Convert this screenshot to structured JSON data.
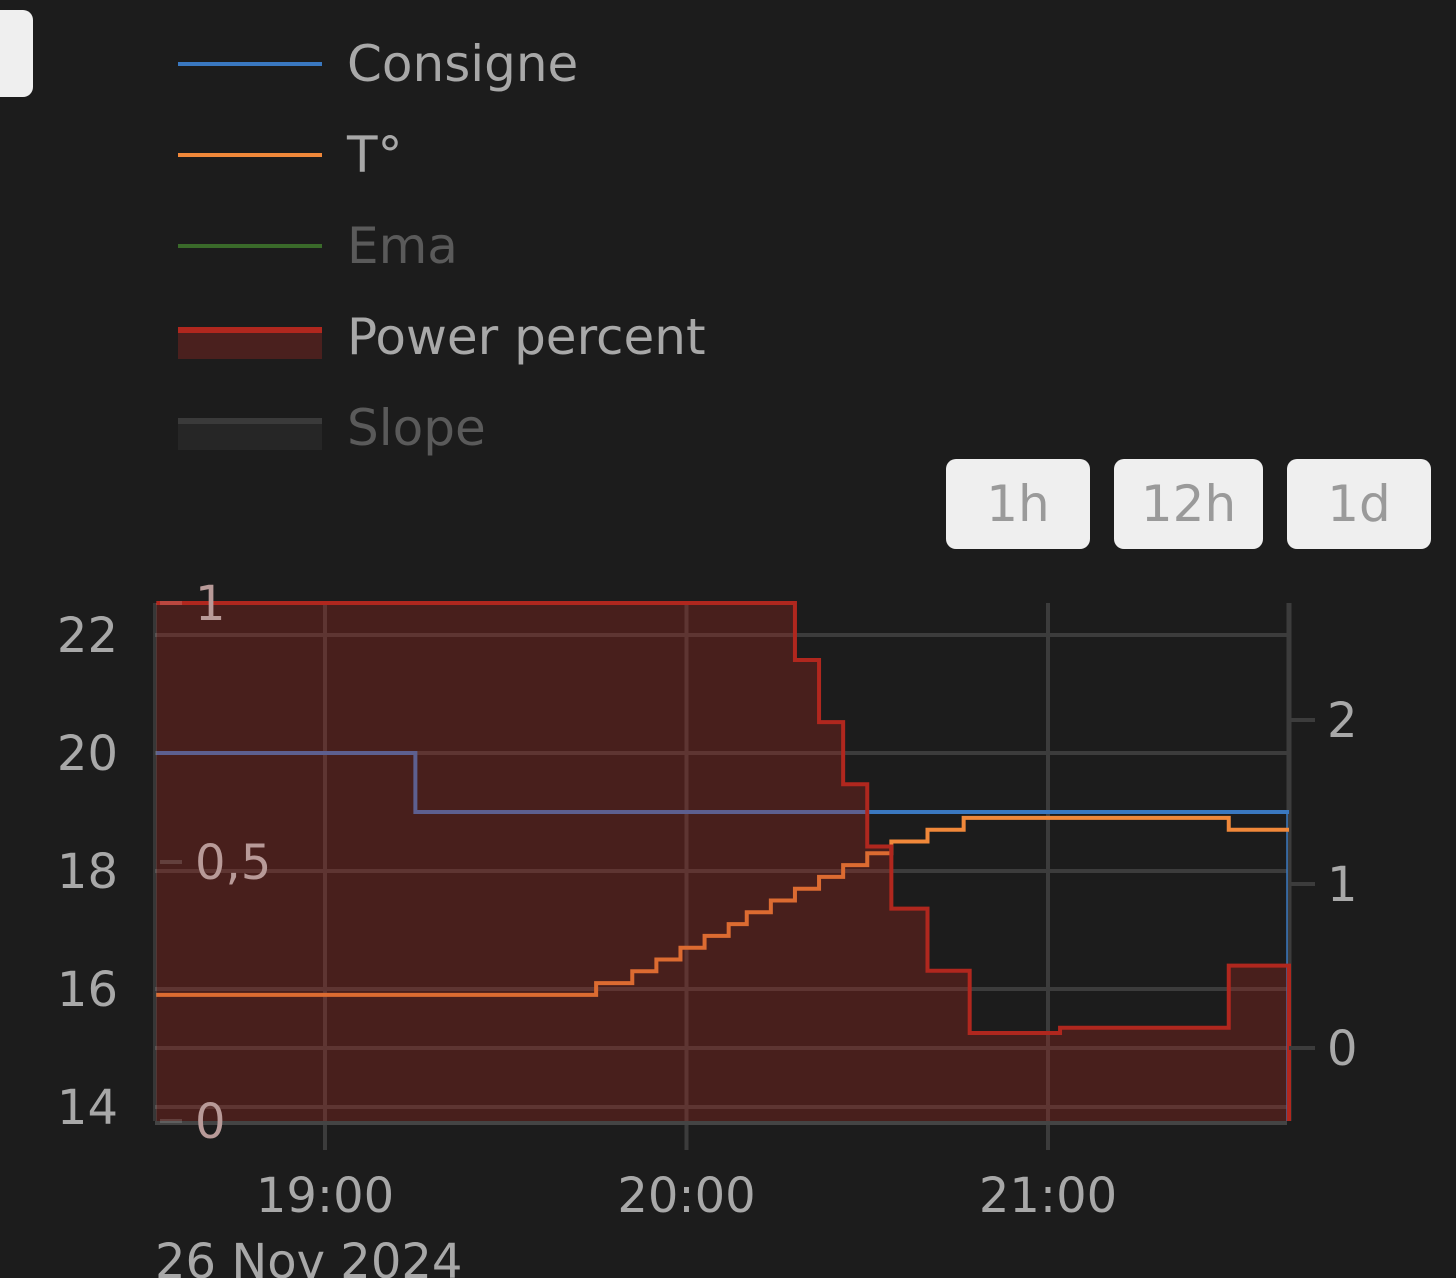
{
  "legend": [
    {
      "name": "Consigne",
      "color": "#3a78c0",
      "visible": true
    },
    {
      "name": "T°",
      "color": "#f0883a",
      "visible": true
    },
    {
      "name": "Ema",
      "color": "#3a6a2a",
      "visible": false
    },
    {
      "name": "Power percent",
      "color": "#b0271e",
      "fill": "#4a201e",
      "visible": true
    },
    {
      "name": "Slope",
      "color": "#3a3a3a",
      "fill": "#262626",
      "visible": false
    }
  ],
  "range_buttons": [
    "1h",
    "12h",
    "1d"
  ],
  "chart_data": {
    "type": "line",
    "line_shape": "step",
    "x_range": [
      "18:32",
      "21:40"
    ],
    "x_ticks": [
      "19:00",
      "20:00",
      "21:00"
    ],
    "x_date_label": "26 Nov 2024",
    "y_left": {
      "range": [
        13.8,
        22.5
      ],
      "ticks": [
        "22",
        "20",
        "18",
        "16",
        "14"
      ]
    },
    "y_power": {
      "range": [
        0,
        1
      ],
      "ticks": [
        "1",
        "0,5",
        "0"
      ]
    },
    "y_slope": {
      "range": [
        -0.45,
        2.7
      ],
      "ticks": [
        "2",
        "1",
        "0"
      ]
    },
    "grid": true,
    "legend_position": "top-left",
    "series": [
      {
        "name": "Consigne",
        "axis": "left",
        "color": "#3a78c0",
        "x": [
          "18:32",
          "19:15",
          "21:40"
        ],
        "y": [
          20,
          19,
          19
        ]
      },
      {
        "name": "T°",
        "axis": "left",
        "color": "#f0883a",
        "x": [
          "18:32",
          "19:45",
          "19:51",
          "19:55",
          "19:59",
          "20:03",
          "20:07",
          "20:10",
          "20:14",
          "20:18",
          "20:22",
          "20:26",
          "20:30",
          "20:34",
          "20:40",
          "20:46",
          "21:30",
          "21:40"
        ],
        "y": [
          15.9,
          16.1,
          16.3,
          16.5,
          16.7,
          16.9,
          17.1,
          17.3,
          17.5,
          17.7,
          17.9,
          18.1,
          18.3,
          18.5,
          18.7,
          18.9,
          18.7,
          18.7
        ]
      },
      {
        "name": "Power percent",
        "axis": "power",
        "color": "#b0271e",
        "fill": "#4a201e",
        "x": [
          "18:32",
          "20:18",
          "20:22",
          "20:26",
          "20:30",
          "20:34",
          "20:40",
          "20:47",
          "21:02",
          "21:30",
          "21:40"
        ],
        "y": [
          1.0,
          0.89,
          0.77,
          0.65,
          0.53,
          0.41,
          0.29,
          0.17,
          0.18,
          0.3,
          0.3
        ]
      }
    ]
  }
}
